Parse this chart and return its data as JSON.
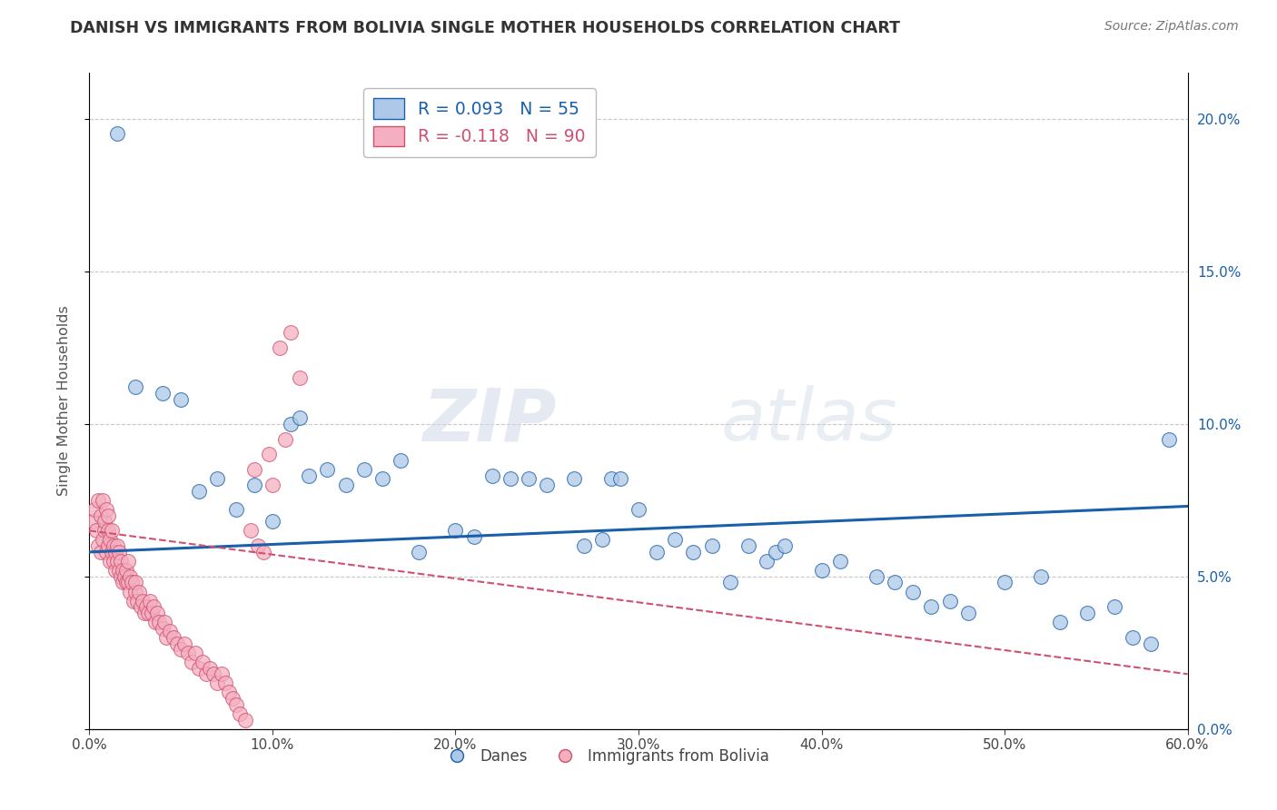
{
  "title": "DANISH VS IMMIGRANTS FROM BOLIVIA SINGLE MOTHER HOUSEHOLDS CORRELATION CHART",
  "source": "Source: ZipAtlas.com",
  "ylabel": "Single Mother Households",
  "legend_label_blue": "Danes",
  "legend_label_pink": "Immigrants from Bolivia",
  "r_blue": 0.093,
  "n_blue": 55,
  "r_pink": -0.118,
  "n_pink": 90,
  "color_blue": "#adc8e8",
  "color_pink": "#f4afc0",
  "line_color_blue": "#1a5faa",
  "line_color_pink": "#d05070",
  "xmin": 0.0,
  "xmax": 0.6,
  "ymin": 0.0,
  "ymax": 0.215,
  "yticks": [
    0.0,
    0.05,
    0.1,
    0.15,
    0.2
  ],
  "ytick_labels": [
    "0.0%",
    "5.0%",
    "10.0%",
    "15.0%",
    "20.0%"
  ],
  "xticks": [
    0.0,
    0.1,
    0.2,
    0.3,
    0.4,
    0.5,
    0.6
  ],
  "xtick_labels": [
    "0.0%",
    "10.0%",
    "20.0%",
    "30.0%",
    "40.0%",
    "50.0%",
    "60.0%"
  ],
  "danes_x": [
    0.015,
    0.025,
    0.04,
    0.05,
    0.06,
    0.07,
    0.08,
    0.09,
    0.1,
    0.11,
    0.115,
    0.12,
    0.13,
    0.14,
    0.15,
    0.16,
    0.17,
    0.18,
    0.2,
    0.21,
    0.22,
    0.23,
    0.24,
    0.25,
    0.265,
    0.27,
    0.28,
    0.285,
    0.29,
    0.3,
    0.31,
    0.32,
    0.33,
    0.34,
    0.35,
    0.36,
    0.37,
    0.375,
    0.38,
    0.4,
    0.41,
    0.43,
    0.44,
    0.45,
    0.46,
    0.47,
    0.48,
    0.5,
    0.52,
    0.53,
    0.545,
    0.56,
    0.57,
    0.58,
    0.59
  ],
  "danes_y": [
    0.195,
    0.112,
    0.11,
    0.108,
    0.078,
    0.082,
    0.072,
    0.08,
    0.068,
    0.1,
    0.102,
    0.083,
    0.085,
    0.08,
    0.085,
    0.082,
    0.088,
    0.058,
    0.065,
    0.063,
    0.083,
    0.082,
    0.082,
    0.08,
    0.082,
    0.06,
    0.062,
    0.082,
    0.082,
    0.072,
    0.058,
    0.062,
    0.058,
    0.06,
    0.048,
    0.06,
    0.055,
    0.058,
    0.06,
    0.052,
    0.055,
    0.05,
    0.048,
    0.045,
    0.04,
    0.042,
    0.038,
    0.048,
    0.05,
    0.035,
    0.038,
    0.04,
    0.03,
    0.028,
    0.095
  ],
  "bolivia_x": [
    0.002,
    0.003,
    0.004,
    0.005,
    0.005,
    0.006,
    0.006,
    0.007,
    0.007,
    0.008,
    0.008,
    0.009,
    0.009,
    0.01,
    0.01,
    0.01,
    0.011,
    0.011,
    0.012,
    0.012,
    0.013,
    0.013,
    0.014,
    0.014,
    0.015,
    0.015,
    0.016,
    0.016,
    0.017,
    0.017,
    0.018,
    0.018,
    0.019,
    0.02,
    0.02,
    0.021,
    0.021,
    0.022,
    0.022,
    0.023,
    0.024,
    0.025,
    0.025,
    0.026,
    0.027,
    0.028,
    0.029,
    0.03,
    0.031,
    0.032,
    0.033,
    0.034,
    0.035,
    0.036,
    0.037,
    0.038,
    0.04,
    0.041,
    0.042,
    0.044,
    0.046,
    0.048,
    0.05,
    0.052,
    0.054,
    0.056,
    0.058,
    0.06,
    0.062,
    0.064,
    0.066,
    0.068,
    0.07,
    0.072,
    0.074,
    0.076,
    0.078,
    0.08,
    0.082,
    0.085,
    0.088,
    0.09,
    0.092,
    0.095,
    0.098,
    0.1,
    0.104,
    0.107,
    0.11,
    0.115
  ],
  "bolivia_y": [
    0.068,
    0.072,
    0.065,
    0.06,
    0.075,
    0.058,
    0.07,
    0.062,
    0.075,
    0.065,
    0.068,
    0.072,
    0.058,
    0.06,
    0.065,
    0.07,
    0.055,
    0.062,
    0.058,
    0.065,
    0.055,
    0.06,
    0.052,
    0.058,
    0.055,
    0.06,
    0.052,
    0.058,
    0.05,
    0.055,
    0.048,
    0.052,
    0.05,
    0.048,
    0.052,
    0.055,
    0.048,
    0.05,
    0.045,
    0.048,
    0.042,
    0.045,
    0.048,
    0.042,
    0.045,
    0.04,
    0.042,
    0.038,
    0.04,
    0.038,
    0.042,
    0.038,
    0.04,
    0.035,
    0.038,
    0.035,
    0.033,
    0.035,
    0.03,
    0.032,
    0.03,
    0.028,
    0.026,
    0.028,
    0.025,
    0.022,
    0.025,
    0.02,
    0.022,
    0.018,
    0.02,
    0.018,
    0.015,
    0.018,
    0.015,
    0.012,
    0.01,
    0.008,
    0.005,
    0.003,
    0.065,
    0.085,
    0.06,
    0.058,
    0.09,
    0.08,
    0.125,
    0.095,
    0.13,
    0.115
  ],
  "watermark_zip": "ZIP",
  "watermark_atlas": "atlas",
  "background_color": "#ffffff",
  "grid_color": "#c8c8c8"
}
